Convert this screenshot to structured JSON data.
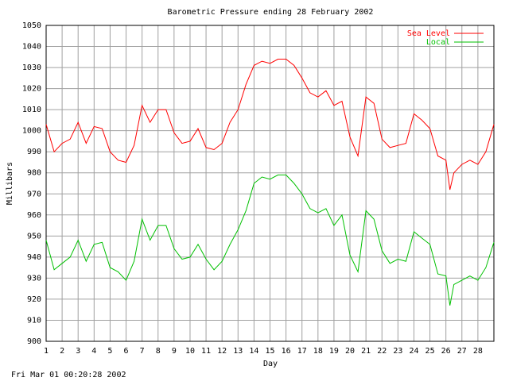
{
  "chart_data": {
    "type": "line",
    "title": "Barometric Pressure ending 28 February 2002",
    "x_label": "Day",
    "y_label": "Millibars",
    "x": [
      1,
      1.5,
      2,
      2.5,
      3,
      3.5,
      4,
      4.5,
      5,
      5.5,
      6,
      6.5,
      7,
      7.5,
      8,
      8.5,
      9,
      9.5,
      10,
      10.5,
      11,
      11.5,
      12,
      12.5,
      13,
      13.5,
      14,
      14.5,
      15,
      15.5,
      16,
      16.5,
      17,
      17.5,
      18,
      18.5,
      19,
      19.5,
      20,
      20.5,
      21,
      21.5,
      22,
      22.5,
      23,
      23.5,
      24,
      24.5,
      25,
      25.5,
      26,
      26.25,
      26.5,
      27,
      27.5,
      28,
      28.5,
      29
    ],
    "series": [
      {
        "name": "Sea Level",
        "color": "#ff0000",
        "values": [
          1003,
          990,
          994,
          996,
          1004,
          994,
          1002,
          1001,
          990,
          986,
          985,
          993,
          1012,
          1004,
          1010,
          1010,
          999,
          994,
          995,
          1001,
          992,
          991,
          994,
          1004,
          1010,
          1022,
          1031,
          1033,
          1032,
          1034,
          1034,
          1031,
          1025,
          1018,
          1016,
          1019,
          1012,
          1014,
          997,
          988,
          1016,
          1013,
          996,
          992,
          993,
          994,
          1008,
          1005,
          1001,
          988,
          986,
          972,
          980,
          984,
          986,
          984,
          990,
          1003
        ]
      },
      {
        "name": "Local",
        "color": "#00c000",
        "values": [
          948,
          934,
          937,
          940,
          948,
          938,
          946,
          947,
          935,
          933,
          929,
          938,
          958,
          948,
          955,
          955,
          944,
          939,
          940,
          946,
          939,
          934,
          938,
          946,
          953,
          962,
          975,
          978,
          977,
          979,
          979,
          975,
          970,
          963,
          961,
          963,
          955,
          960,
          941,
          933,
          962,
          958,
          943,
          937,
          939,
          938,
          952,
          949,
          946,
          932,
          931,
          917,
          927,
          929,
          931,
          929,
          935,
          947
        ]
      }
    ],
    "xlim": [
      1,
      29
    ],
    "xticks": [
      1,
      2,
      3,
      4,
      5,
      6,
      7,
      8,
      9,
      10,
      11,
      12,
      13,
      14,
      15,
      16,
      17,
      18,
      19,
      20,
      21,
      22,
      23,
      24,
      25,
      26,
      27,
      28
    ],
    "ylim": [
      900,
      1050
    ],
    "yticks": [
      900,
      910,
      920,
      930,
      940,
      950,
      960,
      970,
      980,
      990,
      1000,
      1010,
      1020,
      1030,
      1040,
      1050
    ],
    "grid": true,
    "legend": "top-right"
  },
  "footer": "Fri Mar 01 00:20:28 2002"
}
